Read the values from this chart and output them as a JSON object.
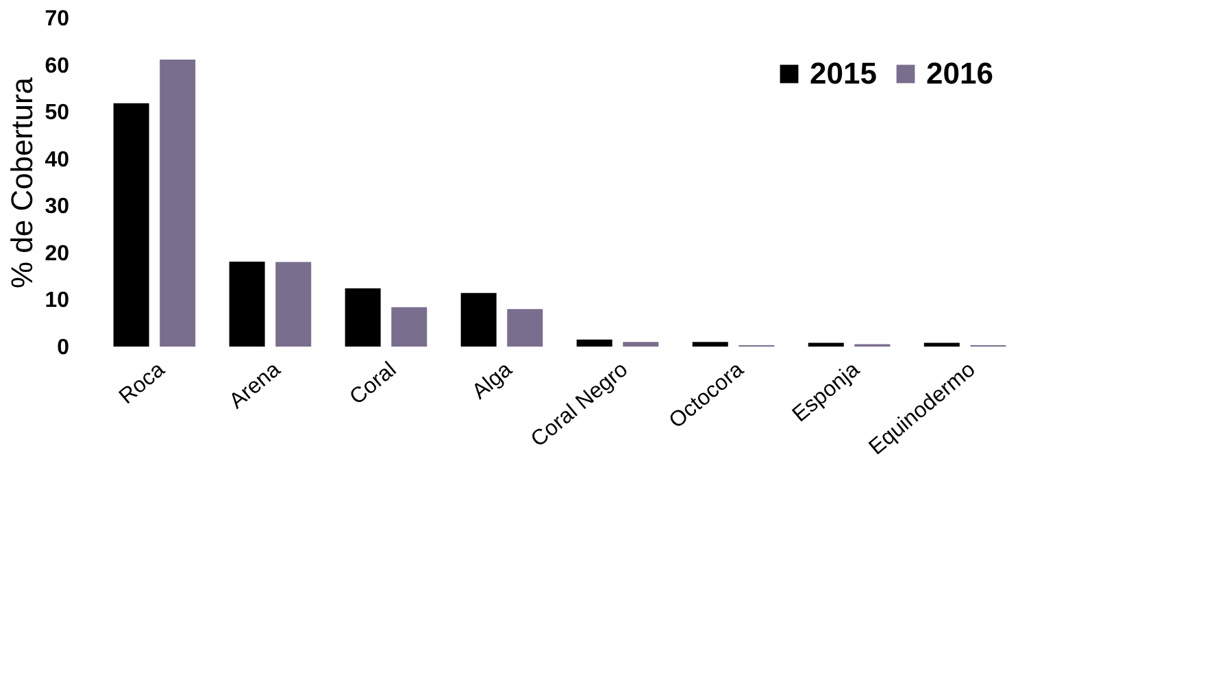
{
  "chart_data": {
    "type": "bar",
    "ylabel": "% de Cobertura",
    "categories": [
      "Roca",
      "Arena",
      "Coral",
      "Alga",
      "Coral Negro",
      "Octocora",
      "Esponja",
      "Equinodermo"
    ],
    "series": [
      {
        "name": "2015",
        "color": "#000000",
        "values": [
          51.8,
          18.1,
          12.4,
          11.4,
          1.5,
          1.0,
          0.8,
          0.8
        ]
      },
      {
        "name": "2016",
        "color": "#7a6e8e",
        "values": [
          61.1,
          18.0,
          8.4,
          8.0,
          1.0,
          0.3,
          0.5,
          0.3
        ]
      }
    ],
    "ylim": [
      0,
      70
    ],
    "yticks": [
      0,
      10,
      20,
      30,
      40,
      50,
      60,
      70
    ],
    "grid": false,
    "legend": "top right"
  }
}
